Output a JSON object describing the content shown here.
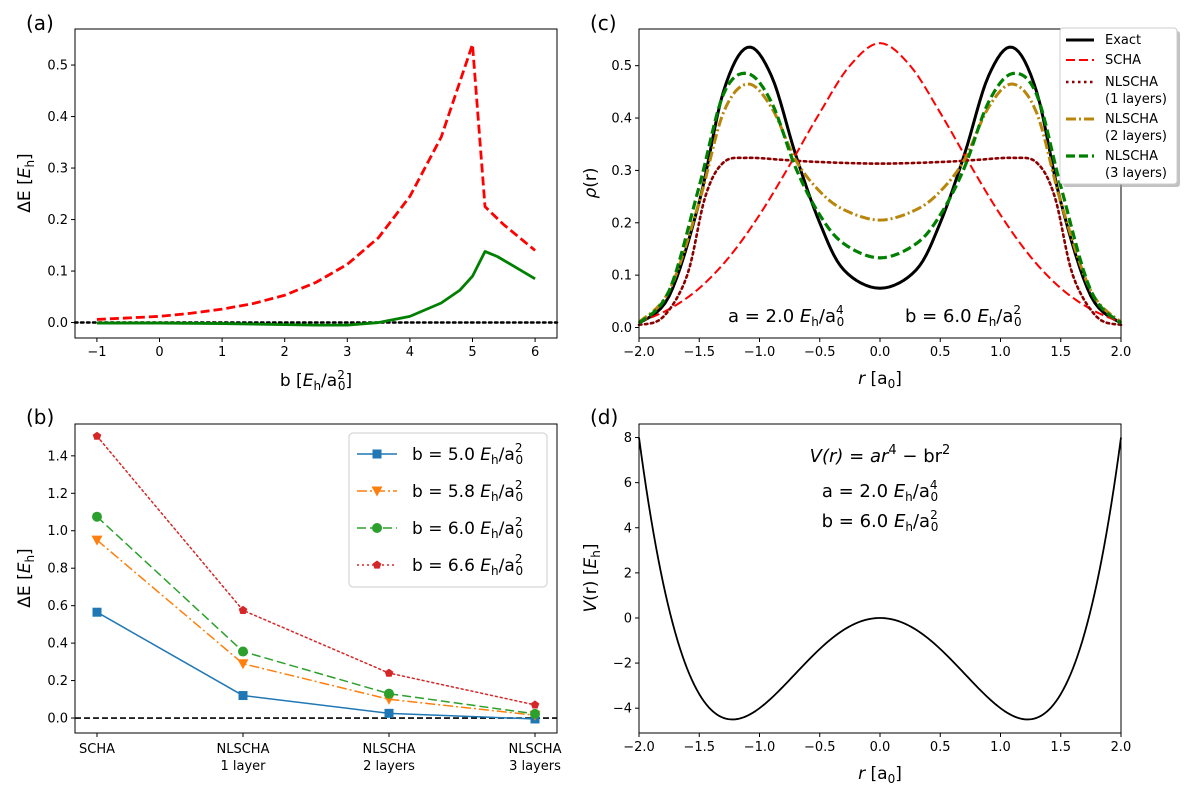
{
  "chart_data": [
    {
      "panel": "(a)",
      "type": "line",
      "xlabel": "b [E_h/a_0^2]",
      "ylabel": "ΔE [E_h]",
      "xlim": [
        -1.35,
        6.35
      ],
      "ylim": [
        -0.03,
        0.57
      ],
      "xticks": [
        -1,
        0,
        1,
        2,
        3,
        4,
        5,
        6
      ],
      "yticks": [
        0.0,
        0.1,
        0.2,
        0.3,
        0.4,
        0.5
      ],
      "series": [
        {
          "name": "SCHA",
          "color": "#ff0000",
          "style": "dashed",
          "x": [
            -1,
            0,
            0.5,
            1,
            1.5,
            2,
            2.5,
            3,
            3.5,
            4,
            4.5,
            5.0,
            5.2,
            5.5,
            6
          ],
          "y": [
            0.006,
            0.012,
            0.018,
            0.026,
            0.037,
            0.053,
            0.078,
            0.113,
            0.165,
            0.245,
            0.36,
            0.54,
            0.225,
            0.19,
            0.14
          ]
        },
        {
          "name": "NLSCHA",
          "color": "#008000",
          "style": "solid",
          "x": [
            -1,
            0,
            1,
            2,
            2.5,
            3,
            3.5,
            4,
            4.5,
            4.8,
            5.0,
            5.2,
            5.4,
            6
          ],
          "y": [
            -0.001,
            -0.001,
            -0.002,
            -0.004,
            -0.005,
            -0.005,
            0.0,
            0.012,
            0.038,
            0.063,
            0.09,
            0.138,
            0.128,
            0.085
          ]
        }
      ],
      "reference_line": {
        "y": 0.0,
        "style": "dotted",
        "color": "#000000"
      }
    },
    {
      "panel": "(b)",
      "type": "line",
      "ylabel": "ΔE [E_h]",
      "categories": [
        "SCHA",
        "NLSCHA",
        "NLSCHA",
        "NLSCHA"
      ],
      "category_sub": [
        "",
        "1 layer",
        "2 layers",
        "3 layers"
      ],
      "ylim": [
        -0.08,
        1.57
      ],
      "yticks": [
        0.0,
        0.2,
        0.4,
        0.6,
        0.8,
        1.0,
        1.2,
        1.4
      ],
      "series": [
        {
          "name": "b = 5.0 E_h/a_0^2",
          "color": "#1f77b4",
          "style": "solid",
          "marker": "square",
          "values": [
            0.565,
            0.12,
            0.025,
            -0.005
          ]
        },
        {
          "name": "b = 5.8 E_h/a_0^2",
          "color": "#ff7f0e",
          "style": "dashdot",
          "marker": "triangle-down",
          "values": [
            0.95,
            0.29,
            0.1,
            0.015
          ]
        },
        {
          "name": "b = 6.0 E_h/a_0^2",
          "color": "#2ca02c",
          "style": "dashed",
          "marker": "circle",
          "values": [
            1.075,
            0.355,
            0.13,
            0.022
          ]
        },
        {
          "name": "b = 6.6 E_h/a_0^2",
          "color": "#d62728",
          "style": "dotted",
          "marker": "pentagon",
          "values": [
            1.505,
            0.575,
            0.24,
            0.07
          ]
        }
      ],
      "reference_line": {
        "y": 0.0,
        "style": "dashed",
        "color": "#000000"
      }
    },
    {
      "panel": "(c)",
      "type": "line",
      "xlabel": "r [a_0]",
      "ylabel": "ρ(r)",
      "xlim": [
        -2.0,
        2.0
      ],
      "ylim": [
        -0.02,
        0.57
      ],
      "xticks": [
        -2.0,
        -1.5,
        -1.0,
        -0.5,
        0.0,
        0.5,
        1.0,
        1.5,
        2.0
      ],
      "yticks": [
        0.0,
        0.1,
        0.2,
        0.3,
        0.4,
        0.5
      ],
      "series": [
        {
          "name": "Exact",
          "color": "#000000",
          "style": "solid",
          "x": [
            -2.0,
            -1.75,
            -1.5,
            -1.3,
            -1.1,
            -0.9,
            -0.7,
            -0.5,
            -0.3,
            0.0,
            0.3,
            0.5,
            0.7,
            0.9,
            1.1,
            1.3,
            1.5,
            1.75,
            2.0
          ],
          "y": [
            0.008,
            0.06,
            0.24,
            0.45,
            0.535,
            0.48,
            0.33,
            0.2,
            0.11,
            0.075,
            0.11,
            0.2,
            0.33,
            0.48,
            0.535,
            0.45,
            0.24,
            0.06,
            0.008
          ]
        },
        {
          "name": "SCHA",
          "color": "#ff0000",
          "style": "dashed",
          "x": [
            -2.0,
            -1.75,
            -1.5,
            -1.25,
            -1.0,
            -0.75,
            -0.5,
            -0.25,
            0.0,
            0.25,
            0.5,
            0.75,
            1.0,
            1.25,
            1.5,
            1.75,
            2.0
          ],
          "y": [
            0.01,
            0.035,
            0.075,
            0.135,
            0.215,
            0.31,
            0.41,
            0.5,
            0.543,
            0.5,
            0.41,
            0.31,
            0.215,
            0.135,
            0.075,
            0.035,
            0.01
          ]
        },
        {
          "name": "NLSCHA\n(1 layers)",
          "color": "#8b0000",
          "style": "dotted",
          "x": [
            -2.0,
            -1.8,
            -1.6,
            -1.45,
            -1.3,
            -1.1,
            -0.8,
            -0.5,
            0.0,
            0.5,
            0.8,
            1.1,
            1.3,
            1.45,
            1.6,
            1.8,
            2.0
          ],
          "y": [
            0.005,
            0.02,
            0.1,
            0.25,
            0.315,
            0.324,
            0.32,
            0.316,
            0.313,
            0.316,
            0.32,
            0.324,
            0.315,
            0.25,
            0.1,
            0.02,
            0.005
          ]
        },
        {
          "name": "NLSCHA\n(2 layers)",
          "color": "#b8860b",
          "style": "dashdot",
          "x": [
            -2.0,
            -1.75,
            -1.5,
            -1.3,
            -1.1,
            -0.9,
            -0.7,
            -0.5,
            -0.3,
            0.0,
            0.3,
            0.5,
            0.7,
            0.9,
            1.1,
            1.3,
            1.5,
            1.75,
            2.0
          ],
          "y": [
            0.01,
            0.07,
            0.24,
            0.41,
            0.465,
            0.42,
            0.32,
            0.26,
            0.225,
            0.205,
            0.225,
            0.26,
            0.32,
            0.42,
            0.465,
            0.41,
            0.24,
            0.07,
            0.01
          ]
        },
        {
          "name": "NLSCHA\n(3 layers)",
          "color": "#008000",
          "style": "dashed",
          "x": [
            -2.0,
            -1.75,
            -1.5,
            -1.3,
            -1.1,
            -0.9,
            -0.7,
            -0.5,
            -0.3,
            0.0,
            0.3,
            0.5,
            0.7,
            0.9,
            1.1,
            1.3,
            1.5,
            1.75,
            2.0
          ],
          "y": [
            0.008,
            0.07,
            0.27,
            0.445,
            0.485,
            0.43,
            0.305,
            0.215,
            0.16,
            0.133,
            0.16,
            0.215,
            0.305,
            0.43,
            0.485,
            0.445,
            0.27,
            0.07,
            0.008
          ]
        }
      ],
      "annotations": [
        "a = 2.0 E_h/a_0^4",
        "b = 6.0 E_h/a_0^2"
      ]
    },
    {
      "panel": "(d)",
      "type": "line",
      "xlabel": "r [a_0]",
      "ylabel": "V(r) [E_h]",
      "xlim": [
        -2.0,
        2.0
      ],
      "ylim": [
        -5.1,
        8.6
      ],
      "xticks": [
        -2.0,
        -1.5,
        -1.0,
        -0.5,
        0.0,
        0.5,
        1.0,
        1.5,
        2.0
      ],
      "yticks": [
        -4,
        -2,
        0,
        2,
        4,
        6,
        8
      ],
      "series": [
        {
          "name": "V(r) = a r^4 - b r^2",
          "color": "#000000",
          "style": "solid",
          "a": 2.0,
          "b": 6.0
        }
      ],
      "annotations": [
        "V(r) = ar^4 − br^2",
        "a = 2.0 E_h/a_0^4",
        "b = 6.0 E_h/a_0^2"
      ]
    }
  ],
  "panel_labels": {
    "a": "(a)",
    "b": "(b)",
    "c": "(c)",
    "d": "(d)"
  },
  "text": {
    "a_xlabel_pre": "b [",
    "E": "E",
    "h": "h",
    "slash_a": "/a",
    "zero": "0",
    "two": "2",
    "four": "4",
    "close": "]",
    "dE_pre": "ΔE [",
    "rho": "ρ",
    "rho_r": "(r)",
    "r": "r",
    "r_unit_pre": " [a",
    "V": "V",
    "Vr": "(r) [",
    "c_annot_a": "a = 2.0 ",
    "c_annot_b": "b = 6.0 ",
    "d_formula_lhs": "V(r) = ar",
    "d_formula_mid": " − br",
    "b_leg": [
      "b = 5.0 ",
      "b = 5.8 ",
      "b = 6.0 ",
      "b = 6.6 "
    ],
    "c_leg": [
      [
        "Exact"
      ],
      [
        "SCHA"
      ],
      [
        "NLSCHA",
        "(1 layers)"
      ],
      [
        "NLSCHA",
        "(2 layers)"
      ],
      [
        "NLSCHA",
        "(3 layers)"
      ]
    ]
  }
}
